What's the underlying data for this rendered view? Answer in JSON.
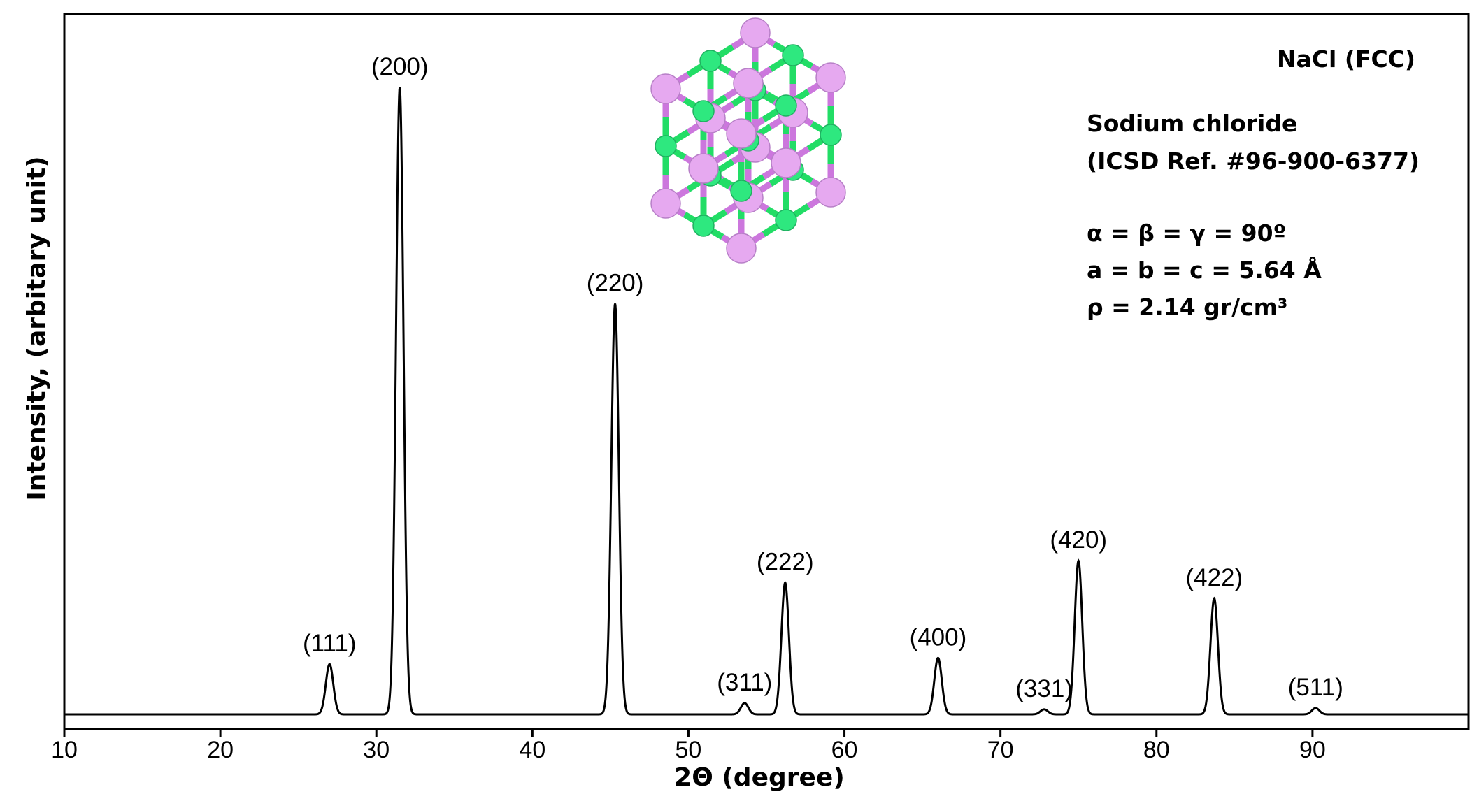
{
  "chart_data": {
    "type": "line",
    "title": "",
    "xlabel": "2Θ (degree)",
    "ylabel": "Intensity, (arbitary unit)",
    "xlim": [
      10,
      100
    ],
    "ylim": [
      0,
      105
    ],
    "x_ticks": [
      10,
      20,
      30,
      40,
      50,
      60,
      70,
      80,
      90
    ],
    "y_ticks_shown": false,
    "grid": false,
    "line_color": "#000000",
    "peaks": [
      {
        "label": "(111)",
        "x": 27.0,
        "y": 8.0
      },
      {
        "label": "(200)",
        "x": 31.5,
        "y": 100.0
      },
      {
        "label": "(220)",
        "x": 45.3,
        "y": 65.5
      },
      {
        "label": "(311)",
        "x": 53.6,
        "y": 1.8
      },
      {
        "label": "(222)",
        "x": 56.2,
        "y": 21.0
      },
      {
        "label": "(400)",
        "x": 66.0,
        "y": 9.0
      },
      {
        "label": "(331)",
        "x": 72.8,
        "y": 0.8
      },
      {
        "label": "(420)",
        "x": 75.0,
        "y": 24.5
      },
      {
        "label": "(422)",
        "x": 83.7,
        "y": 18.5
      },
      {
        "label": "(511)",
        "x": 90.2,
        "y": 1.0
      }
    ],
    "annotations": {
      "phase": "NaCl (FCC)",
      "name": "Sodium chloride",
      "reference": "(ICSD Ref. #96-900-6377)",
      "angles": "α =  β =  γ = 90º",
      "lattice": "a = b = c = 5.64 Å",
      "density": "ρ = 2.14 gr/cm³"
    },
    "inset": {
      "name": "crystal-structure",
      "colors": {
        "na": "#e6a9f0",
        "cl": "#2ee87f",
        "bond_na": "#cc77dd",
        "bond_cl": "#22dd66"
      }
    }
  }
}
